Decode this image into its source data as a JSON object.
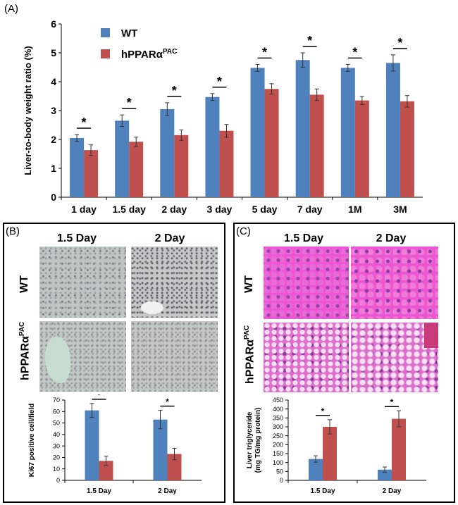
{
  "panels": {
    "a_label": "(A)",
    "b_label": "(B)",
    "c_label": "(C)"
  },
  "colors": {
    "wt": "#4f81bd",
    "mutant": "#c0504d"
  },
  "images": {
    "b_columns": [
      "1.5 Day",
      "2 Day"
    ],
    "b_rows": [
      "WT",
      "hPPARα"
    ],
    "b_rows_sup": [
      "",
      "PAC"
    ],
    "c_columns": [
      "1.5 Day",
      "2 Day"
    ],
    "c_rows": [
      "WT",
      "hPPARα"
    ],
    "c_rows_sup": [
      "",
      "PAC"
    ]
  },
  "chart_data": [
    {
      "type": "bar",
      "id": "A",
      "categories": [
        "1 day",
        "1.5 day",
        "2 day",
        "3 day",
        "5 day",
        "7 day",
        "1M",
        "3M"
      ],
      "series": [
        {
          "name": "WT",
          "values": [
            2.05,
            2.65,
            3.05,
            3.47,
            4.48,
            4.75,
            4.48,
            4.65
          ],
          "errors": [
            0.12,
            0.2,
            0.22,
            0.12,
            0.12,
            0.25,
            0.12,
            0.28
          ]
        },
        {
          "name": "hPPARα",
          "name_sup": "PAC",
          "values": [
            1.63,
            1.92,
            2.15,
            2.3,
            3.75,
            3.55,
            3.35,
            3.32
          ],
          "errors": [
            0.18,
            0.16,
            0.18,
            0.22,
            0.18,
            0.2,
            0.14,
            0.2
          ]
        }
      ],
      "ylabel": "Liver-to-body weight ratio (%)",
      "ylim": [
        0,
        6
      ],
      "yticks": [
        "0",
        "1",
        "2",
        "3",
        "4",
        "5",
        "6"
      ],
      "significance": [
        "*",
        "*",
        "*",
        "*",
        "*",
        "*",
        "*",
        "*"
      ],
      "legend": "top-left"
    },
    {
      "type": "bar",
      "id": "B",
      "categories": [
        "1.5 Day",
        "2 Day"
      ],
      "series": [
        {
          "values": [
            61,
            53
          ],
          "errors": [
            6,
            8
          ]
        },
        {
          "values": [
            17,
            23
          ],
          "errors": [
            4,
            5
          ]
        }
      ],
      "ylabel": "Ki67 positive cell/field",
      "ylim": [
        0,
        70
      ],
      "yticks": [
        "0",
        "10",
        "20",
        "30",
        "40",
        "50",
        "60",
        "70"
      ],
      "significance": [
        "*",
        "*"
      ]
    },
    {
      "type": "bar",
      "id": "C",
      "categories": [
        "1.5 Day",
        "2 Day"
      ],
      "series": [
        {
          "values": [
            120,
            60
          ],
          "errors": [
            18,
            15
          ]
        },
        {
          "values": [
            300,
            345
          ],
          "errors": [
            40,
            45
          ]
        }
      ],
      "ylabel": "Liver triglyceride",
      "ylabel2": "(mg TG/mg protein)",
      "ylim": [
        0,
        450
      ],
      "yticks": [
        "0",
        "50",
        "100",
        "150",
        "200",
        "250",
        "300",
        "350",
        "400",
        "450"
      ],
      "significance": [
        "*",
        "*"
      ]
    }
  ]
}
